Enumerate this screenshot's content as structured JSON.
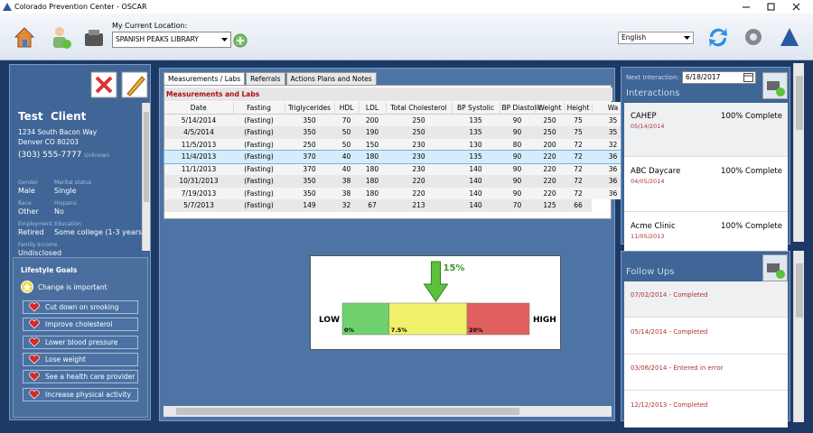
{
  "window": {
    "title": "Colorado Prevention Center - OSCAR"
  },
  "toolbar": {
    "location_label": "My Current Location:",
    "location": "SPANISH PEAKS LIBRARY",
    "language": "English"
  },
  "patient": {
    "first_name": "Test",
    "last_name": "Client",
    "address": [
      "1234 South Bacon Way",
      "Denver CO 80203"
    ],
    "phone": "(303) 555-7777",
    "phone_type": "Unknown",
    "fields": [
      {
        "label": "Gender",
        "value": "Male"
      },
      {
        "label": "Marital status",
        "value": "Single"
      },
      {
        "label": "Race",
        "value": "Other"
      },
      {
        "label": "Hispanic",
        "value": "No"
      },
      {
        "label": "Employment",
        "value": "Retired"
      },
      {
        "label": "Education",
        "value": "Some college (1-3 years)"
      },
      {
        "label": "Family Income",
        "value": "Undisclosed"
      }
    ]
  },
  "lifestyle": {
    "title": "Lifestyle Goals",
    "stage": "Change is important",
    "goals": [
      "Cut down on smoking",
      "Improve cholesterol",
      "Lower blood pressure",
      "Lose weight",
      "See a health care provider",
      "Increase physical activity"
    ]
  },
  "tabs": [
    "Measurements / Labs",
    "Referrals",
    "Actions Plans and Notes"
  ],
  "measurements": {
    "title": "Measurements and Labs",
    "columns": [
      "Date",
      "Fasting",
      "Triglycerides",
      "HDL",
      "LDL",
      "Total Cholesterol",
      "BP Systolic",
      "BP Diastolic",
      "Weight",
      "Height",
      "Wa"
    ],
    "rows": [
      [
        "5/14/2014",
        "(Fasting)",
        350,
        70,
        200,
        250,
        135,
        90,
        250,
        75,
        35
      ],
      [
        "4/5/2014",
        "(Fasting)",
        350,
        50,
        190,
        250,
        135,
        90,
        250,
        75,
        35
      ],
      [
        "11/5/2013",
        "(Fasting)",
        250,
        50,
        150,
        230,
        130,
        80,
        200,
        72,
        32
      ],
      [
        "11/4/2013",
        "(Fasting)",
        370,
        40,
        180,
        230,
        135,
        90,
        220,
        72,
        36
      ],
      [
        "11/1/2013",
        "(Fasting)",
        370,
        40,
        180,
        230,
        140,
        90,
        220,
        72,
        36
      ],
      [
        "10/31/2013",
        "(Fasting)",
        350,
        38,
        180,
        220,
        140,
        90,
        220,
        72,
        36
      ],
      [
        "7/19/2013",
        "(Fasting)",
        350,
        38,
        180,
        220,
        140,
        90,
        220,
        72,
        36
      ],
      [
        "5/7/2013",
        "(Fasting)",
        149,
        32,
        67,
        213,
        140,
        70,
        125,
        66
      ]
    ]
  },
  "risk_gauge": {
    "value": 15,
    "value_label": "15%",
    "low_label": "LOW",
    "high_label": "HIGH",
    "xlim": [
      0,
      30
    ],
    "bands": [
      {
        "start": 0,
        "label": "0%",
        "color": "#6fd26f"
      },
      {
        "start": 7.5,
        "label": "7.5%",
        "color": "#f0f06a"
      },
      {
        "start": 20,
        "label": "20%",
        "color": "#e06060"
      }
    ],
    "arrow_color": "#5cc23a"
  },
  "interactions": {
    "next_label": "Next Interaction:",
    "next_date": "6/18/2017",
    "title": "Interactions",
    "items": [
      {
        "name": "CAHEP",
        "status": "100% Complete",
        "date": "05/14/2014"
      },
      {
        "name": "ABC Daycare",
        "status": "100% Complete",
        "date": "04/05/2014"
      },
      {
        "name": "Acme Clinic",
        "status": "100% Complete",
        "date": "11/05/2013"
      }
    ]
  },
  "follow_ups": {
    "title": "Follow Ups",
    "items": [
      "07/02/2014 - Completed",
      "05/14/2014 - Completed",
      "03/06/2014 - Entered in error",
      "12/12/2013 - Completed"
    ]
  }
}
